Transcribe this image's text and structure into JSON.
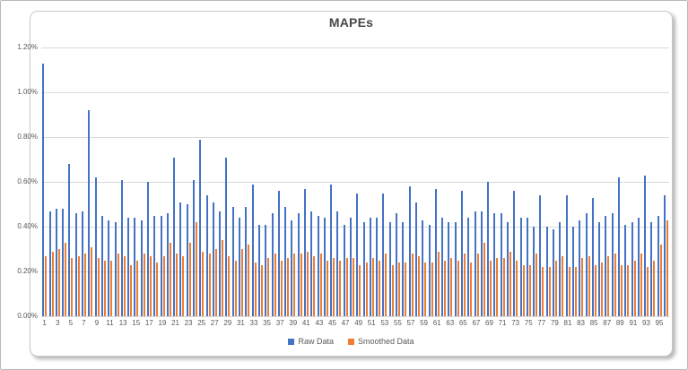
{
  "title": "MAPEs",
  "colors": {
    "raw_series": "#4472C4",
    "smoothed_series": "#ED7D31",
    "gridline": "#D9D9D9",
    "axis_text": "#595959",
    "title_text": "#474747",
    "chart_border": "#C9C9C9"
  },
  "chart_data": {
    "type": "bar",
    "title": "MAPEs",
    "xlabel": "",
    "ylabel": "",
    "ylim": [
      0,
      1.2
    ],
    "grid": true,
    "legend_position": "bottom",
    "ytick_labels": [
      "1.20%",
      "1.00%",
      "0.80%",
      "0.60%",
      "0.40%",
      "0.20%",
      "0.00%"
    ],
    "xtick_step": 2,
    "categories": [
      1,
      2,
      3,
      4,
      5,
      6,
      7,
      8,
      9,
      10,
      11,
      12,
      13,
      14,
      15,
      16,
      17,
      18,
      19,
      20,
      21,
      22,
      23,
      24,
      25,
      26,
      27,
      28,
      29,
      30,
      31,
      32,
      33,
      34,
      35,
      36,
      37,
      38,
      39,
      40,
      41,
      42,
      43,
      44,
      45,
      46,
      47,
      48,
      49,
      50,
      51,
      52,
      53,
      54,
      55,
      56,
      57,
      58,
      59,
      60,
      61,
      62,
      63,
      64,
      65,
      66,
      67,
      68,
      69,
      70,
      71,
      72,
      73,
      74,
      75,
      76,
      77,
      78,
      79,
      80,
      81,
      82,
      83,
      84,
      85,
      86,
      87,
      88,
      89,
      90,
      91,
      92,
      93,
      94,
      95,
      96
    ],
    "value_unit": "percent",
    "series": [
      {
        "name": "Raw Data",
        "color": "#4472C4",
        "values": [
          1.13,
          0.47,
          0.48,
          0.48,
          0.68,
          0.46,
          0.47,
          0.92,
          0.62,
          0.45,
          0.43,
          0.42,
          0.61,
          0.44,
          0.44,
          0.43,
          0.6,
          0.45,
          0.45,
          0.46,
          0.71,
          0.51,
          0.5,
          0.61,
          0.79,
          0.54,
          0.51,
          0.47,
          0.71,
          0.49,
          0.44,
          0.49,
          0.59,
          0.41,
          0.41,
          0.46,
          0.56,
          0.49,
          0.43,
          0.46,
          0.57,
          0.47,
          0.45,
          0.44,
          0.59,
          0.47,
          0.41,
          0.44,
          0.55,
          0.42,
          0.44,
          0.44,
          0.55,
          0.42,
          0.46,
          0.42,
          0.58,
          0.51,
          0.43,
          0.41,
          0.57,
          0.44,
          0.42,
          0.42,
          0.56,
          0.44,
          0.47,
          0.47,
          0.6,
          0.46,
          0.46,
          0.42,
          0.56,
          0.44,
          0.44,
          0.4,
          0.54,
          0.4,
          0.39,
          0.42,
          0.54,
          0.4,
          0.43,
          0.46,
          0.53,
          0.42,
          0.45,
          0.46,
          0.62,
          0.41,
          0.42,
          0.44,
          0.63,
          0.42,
          0.45,
          0.54
        ]
      },
      {
        "name": "Smoothed Data",
        "color": "#ED7D31",
        "values": [
          0.27,
          0.29,
          0.3,
          0.33,
          0.26,
          0.27,
          0.28,
          0.31,
          0.26,
          0.25,
          0.25,
          0.28,
          0.27,
          0.23,
          0.25,
          0.28,
          0.27,
          0.24,
          0.27,
          0.33,
          0.28,
          0.27,
          0.33,
          0.42,
          0.29,
          0.28,
          0.3,
          0.34,
          0.27,
          0.25,
          0.3,
          0.32,
          0.24,
          0.23,
          0.26,
          0.28,
          0.25,
          0.26,
          0.28,
          0.28,
          0.29,
          0.27,
          0.28,
          0.25,
          0.26,
          0.25,
          0.26,
          0.26,
          0.23,
          0.24,
          0.26,
          0.25,
          0.28,
          0.23,
          0.24,
          0.24,
          0.28,
          0.27,
          0.24,
          0.24,
          0.29,
          0.25,
          0.26,
          0.25,
          0.28,
          0.24,
          0.28,
          0.33,
          0.25,
          0.26,
          0.26,
          0.29,
          0.25,
          0.23,
          0.23,
          0.28,
          0.22,
          0.22,
          0.25,
          0.27,
          0.22,
          0.22,
          0.26,
          0.27,
          0.23,
          0.24,
          0.27,
          0.28,
          0.23,
          0.23,
          0.25,
          0.28,
          0.22,
          0.25,
          0.32,
          0.43
        ]
      }
    ]
  }
}
